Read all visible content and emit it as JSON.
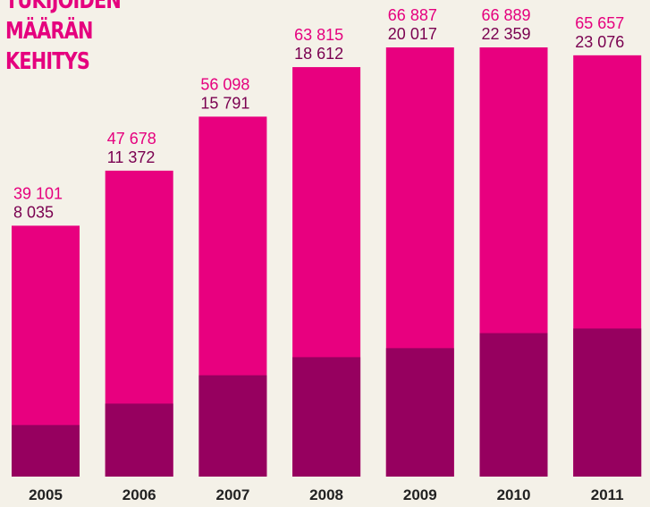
{
  "chart_data": {
    "type": "bar",
    "title": "TUKIJOIDEN MÄÄRÄN KEHITYS",
    "categories": [
      "2005",
      "2006",
      "2007",
      "2008",
      "2009",
      "2010",
      "2011"
    ],
    "series": [
      {
        "color": "#e8007f",
        "values": [
          39101,
          47678,
          56098,
          63815,
          66887,
          66889,
          65657
        ],
        "value_labels": [
          "39 101",
          "47 678",
          "56 098",
          "63 815",
          "66 887",
          "66 889",
          "65 657"
        ]
      },
      {
        "color": "#96005f",
        "values": [
          8035,
          11372,
          15791,
          18612,
          20017,
          22359,
          23076
        ],
        "value_labels": [
          "8 035",
          "11 372",
          "15 791",
          "18 612",
          "20 017",
          "22 359",
          "23 076"
        ]
      }
    ]
  }
}
